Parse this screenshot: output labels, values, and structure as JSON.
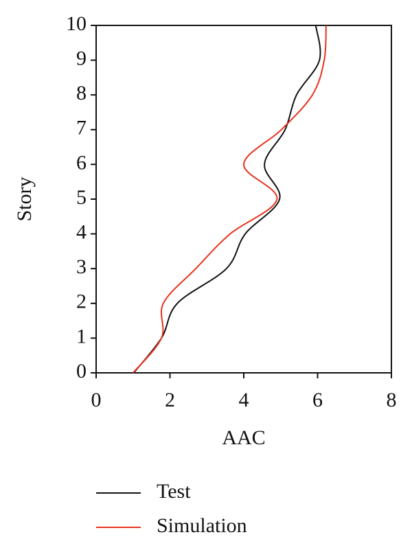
{
  "chart_data": {
    "type": "line",
    "x_label": "AAC",
    "y_label": "Story",
    "xlim": [
      0,
      8
    ],
    "xticks": [
      0,
      2,
      4,
      6,
      8
    ],
    "ylim": [
      0,
      10
    ],
    "yticks": [
      0,
      1,
      2,
      3,
      4,
      5,
      6,
      7,
      8,
      9,
      10
    ],
    "grid": false,
    "legend": "bottom",
    "series": [
      {
        "name": "Test",
        "color": "#111111",
        "x": [
          1.02,
          1.77,
          2.2,
          3.53,
          4.04,
          4.97,
          4.56,
          5.12,
          5.43,
          6.05,
          5.95
        ],
        "values": [
          0,
          1,
          2,
          3,
          4,
          5,
          6,
          7,
          8,
          9,
          10
        ]
      },
      {
        "name": "Simulation",
        "color": "#e8321e",
        "x": [
          1.0,
          1.77,
          1.82,
          2.7,
          3.63,
          4.9,
          4.0,
          5.02,
          5.86,
          6.18,
          6.23
        ],
        "values": [
          0,
          1,
          2,
          3,
          4,
          5,
          6,
          7,
          8,
          9,
          10
        ]
      }
    ]
  }
}
